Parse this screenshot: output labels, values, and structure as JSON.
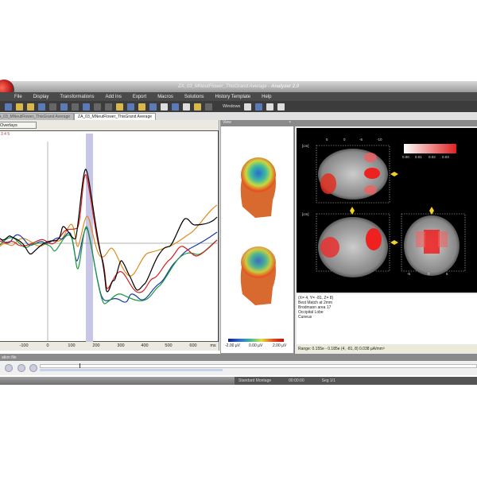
{
  "window": {
    "title": "ZA_03_MNeutFlower_ThisGrand Average",
    "app": "Analyzer 2.0"
  },
  "menu": [
    "File",
    "Display",
    "Transformations",
    "Add Ins",
    "Export",
    "Macros",
    "Solutions",
    "History Template",
    "Help"
  ],
  "toolbar": {
    "windows_label": "Windows"
  },
  "tabs": [
    {
      "label": "ZA_03_MNeutFlower_ThisGrand Average",
      "active": false
    },
    {
      "label": "ZA_03_MNeutFlower_ThisGrand Average",
      "active": true
    }
  ],
  "left_panel": {
    "overlay_button": "Overlays",
    "channel_labels": "3 4 5",
    "x_ticks": [
      "-100",
      "0",
      "100",
      "200",
      "300",
      "400",
      "500",
      "600"
    ],
    "x_unit": "ms",
    "series_colors": [
      "#000000",
      "#d42020",
      "#e08a1c",
      "#1a3aa0",
      "#1c9a3c"
    ],
    "highlight_color": "#c8c6e6"
  },
  "view_panel": {
    "title": "View",
    "scale": [
      "-2.00 µV",
      "0.00 µV",
      "2.00 µV"
    ]
  },
  "brain_panel": {
    "unit": "[cm]",
    "colorbar": [
      "0.00",
      "0.01",
      "0.02",
      "0.03"
    ],
    "axial_x_ticks": [
      "5",
      "0",
      "-5",
      "-10"
    ],
    "coronal_x_ticks": [
      "-5",
      "0",
      "5"
    ]
  },
  "info": [
    "(X= 4, Y= -81, Z= 8)",
    "Best Match at 2mm",
    "Brodmann area 17",
    "Occipital Lobe",
    "Cuneus"
  ],
  "range_text": "Range: 0.155e - 0.185e (4, -81, 8) 0.038 µA/mm³",
  "lower_panel": {
    "title": "ation file"
  },
  "status": {
    "montage": "Standard Montage",
    "time": "00:00:00",
    "segment": "Seg 1/1"
  }
}
